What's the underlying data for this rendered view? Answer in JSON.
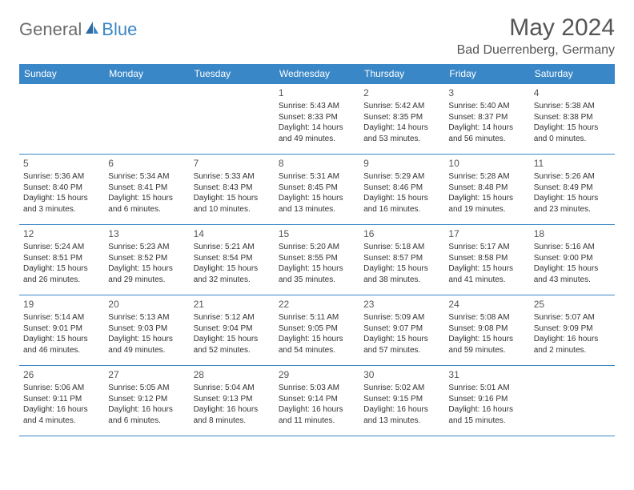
{
  "logo": {
    "part1": "General",
    "part2": "Blue"
  },
  "title": "May 2024",
  "location": "Bad Duerrenberg, Germany",
  "colors": {
    "header_bg": "#3a87c7",
    "header_text": "#ffffff",
    "border": "#3a87c7",
    "text": "#333333",
    "title_text": "#555555"
  },
  "weekdays": [
    "Sunday",
    "Monday",
    "Tuesday",
    "Wednesday",
    "Thursday",
    "Friday",
    "Saturday"
  ],
  "weeks": [
    [
      null,
      null,
      null,
      {
        "n": "1",
        "sr": "Sunrise: 5:43 AM",
        "ss": "Sunset: 8:33 PM",
        "dl": "Daylight: 14 hours and 49 minutes."
      },
      {
        "n": "2",
        "sr": "Sunrise: 5:42 AM",
        "ss": "Sunset: 8:35 PM",
        "dl": "Daylight: 14 hours and 53 minutes."
      },
      {
        "n": "3",
        "sr": "Sunrise: 5:40 AM",
        "ss": "Sunset: 8:37 PM",
        "dl": "Daylight: 14 hours and 56 minutes."
      },
      {
        "n": "4",
        "sr": "Sunrise: 5:38 AM",
        "ss": "Sunset: 8:38 PM",
        "dl": "Daylight: 15 hours and 0 minutes."
      }
    ],
    [
      {
        "n": "5",
        "sr": "Sunrise: 5:36 AM",
        "ss": "Sunset: 8:40 PM",
        "dl": "Daylight: 15 hours and 3 minutes."
      },
      {
        "n": "6",
        "sr": "Sunrise: 5:34 AM",
        "ss": "Sunset: 8:41 PM",
        "dl": "Daylight: 15 hours and 6 minutes."
      },
      {
        "n": "7",
        "sr": "Sunrise: 5:33 AM",
        "ss": "Sunset: 8:43 PM",
        "dl": "Daylight: 15 hours and 10 minutes."
      },
      {
        "n": "8",
        "sr": "Sunrise: 5:31 AM",
        "ss": "Sunset: 8:45 PM",
        "dl": "Daylight: 15 hours and 13 minutes."
      },
      {
        "n": "9",
        "sr": "Sunrise: 5:29 AM",
        "ss": "Sunset: 8:46 PM",
        "dl": "Daylight: 15 hours and 16 minutes."
      },
      {
        "n": "10",
        "sr": "Sunrise: 5:28 AM",
        "ss": "Sunset: 8:48 PM",
        "dl": "Daylight: 15 hours and 19 minutes."
      },
      {
        "n": "11",
        "sr": "Sunrise: 5:26 AM",
        "ss": "Sunset: 8:49 PM",
        "dl": "Daylight: 15 hours and 23 minutes."
      }
    ],
    [
      {
        "n": "12",
        "sr": "Sunrise: 5:24 AM",
        "ss": "Sunset: 8:51 PM",
        "dl": "Daylight: 15 hours and 26 minutes."
      },
      {
        "n": "13",
        "sr": "Sunrise: 5:23 AM",
        "ss": "Sunset: 8:52 PM",
        "dl": "Daylight: 15 hours and 29 minutes."
      },
      {
        "n": "14",
        "sr": "Sunrise: 5:21 AM",
        "ss": "Sunset: 8:54 PM",
        "dl": "Daylight: 15 hours and 32 minutes."
      },
      {
        "n": "15",
        "sr": "Sunrise: 5:20 AM",
        "ss": "Sunset: 8:55 PM",
        "dl": "Daylight: 15 hours and 35 minutes."
      },
      {
        "n": "16",
        "sr": "Sunrise: 5:18 AM",
        "ss": "Sunset: 8:57 PM",
        "dl": "Daylight: 15 hours and 38 minutes."
      },
      {
        "n": "17",
        "sr": "Sunrise: 5:17 AM",
        "ss": "Sunset: 8:58 PM",
        "dl": "Daylight: 15 hours and 41 minutes."
      },
      {
        "n": "18",
        "sr": "Sunrise: 5:16 AM",
        "ss": "Sunset: 9:00 PM",
        "dl": "Daylight: 15 hours and 43 minutes."
      }
    ],
    [
      {
        "n": "19",
        "sr": "Sunrise: 5:14 AM",
        "ss": "Sunset: 9:01 PM",
        "dl": "Daylight: 15 hours and 46 minutes."
      },
      {
        "n": "20",
        "sr": "Sunrise: 5:13 AM",
        "ss": "Sunset: 9:03 PM",
        "dl": "Daylight: 15 hours and 49 minutes."
      },
      {
        "n": "21",
        "sr": "Sunrise: 5:12 AM",
        "ss": "Sunset: 9:04 PM",
        "dl": "Daylight: 15 hours and 52 minutes."
      },
      {
        "n": "22",
        "sr": "Sunrise: 5:11 AM",
        "ss": "Sunset: 9:05 PM",
        "dl": "Daylight: 15 hours and 54 minutes."
      },
      {
        "n": "23",
        "sr": "Sunrise: 5:09 AM",
        "ss": "Sunset: 9:07 PM",
        "dl": "Daylight: 15 hours and 57 minutes."
      },
      {
        "n": "24",
        "sr": "Sunrise: 5:08 AM",
        "ss": "Sunset: 9:08 PM",
        "dl": "Daylight: 15 hours and 59 minutes."
      },
      {
        "n": "25",
        "sr": "Sunrise: 5:07 AM",
        "ss": "Sunset: 9:09 PM",
        "dl": "Daylight: 16 hours and 2 minutes."
      }
    ],
    [
      {
        "n": "26",
        "sr": "Sunrise: 5:06 AM",
        "ss": "Sunset: 9:11 PM",
        "dl": "Daylight: 16 hours and 4 minutes."
      },
      {
        "n": "27",
        "sr": "Sunrise: 5:05 AM",
        "ss": "Sunset: 9:12 PM",
        "dl": "Daylight: 16 hours and 6 minutes."
      },
      {
        "n": "28",
        "sr": "Sunrise: 5:04 AM",
        "ss": "Sunset: 9:13 PM",
        "dl": "Daylight: 16 hours and 8 minutes."
      },
      {
        "n": "29",
        "sr": "Sunrise: 5:03 AM",
        "ss": "Sunset: 9:14 PM",
        "dl": "Daylight: 16 hours and 11 minutes."
      },
      {
        "n": "30",
        "sr": "Sunrise: 5:02 AM",
        "ss": "Sunset: 9:15 PM",
        "dl": "Daylight: 16 hours and 13 minutes."
      },
      {
        "n": "31",
        "sr": "Sunrise: 5:01 AM",
        "ss": "Sunset: 9:16 PM",
        "dl": "Daylight: 16 hours and 15 minutes."
      },
      null
    ]
  ]
}
